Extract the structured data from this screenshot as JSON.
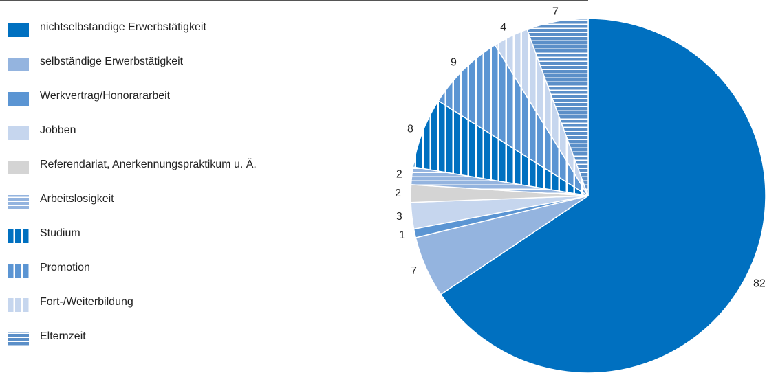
{
  "chart_data": {
    "type": "pie",
    "categories": [
      "nichtselbständige Erwerbstätigkeit",
      "selbständige Erwerbstätigkeit",
      "Werkvertrag/Honorararbeit",
      "Jobben",
      "Referendariat, Anerkennungspraktikum u. Ä.",
      "Arbeitslosigkeit",
      "Studium",
      "Promotion",
      "Fort-/Weiterbildung",
      "Elternzeit"
    ],
    "values": [
      82,
      7,
      1,
      3,
      2,
      2,
      8,
      9,
      4,
      7
    ],
    "colors": [
      "#0070c0",
      "#94b4df",
      "#5b95d3",
      "#c6d6ee",
      "#d4d4d4",
      "#94b4df",
      "#0070c0",
      "#5b95d3",
      "#c6d6ee",
      "#5b8fc8"
    ],
    "patterns": [
      "solid",
      "solid",
      "solid",
      "solid",
      "solid",
      "horizontal",
      "vertical",
      "vertical",
      "vertical",
      "horizontal"
    ],
    "legend": "left"
  }
}
